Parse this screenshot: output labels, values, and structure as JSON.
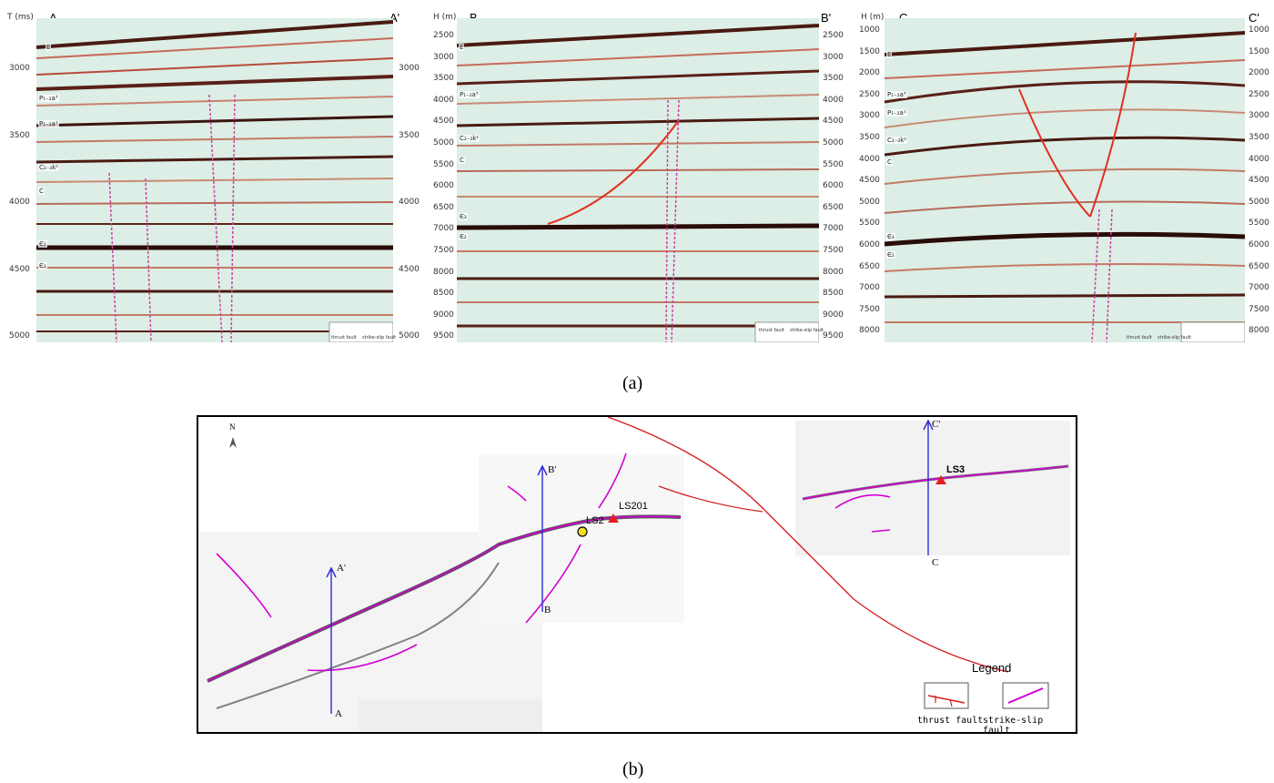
{
  "figure": {
    "label_a": "(a)",
    "label_b": "(b)"
  },
  "panels": [
    {
      "axis_title": "T (ms)",
      "left_end": "A",
      "right_end": "A'",
      "ticks": [
        "3000",
        "3500",
        "4000",
        "4500",
        "5000"
      ],
      "horizons": [
        "E",
        "P₁₋₂a³",
        "P₁₋₂a¹",
        "C₂₋₃k²",
        "C",
        "Є₃",
        "Є₂"
      ],
      "legend": [
        "thrust fault",
        "strike-slip fault"
      ]
    },
    {
      "axis_title": "H (m)",
      "left_end": "B",
      "right_end": "B'",
      "ticks": [
        "2500",
        "3000",
        "3500",
        "4000",
        "4500",
        "5000",
        "5500",
        "6000",
        "6500",
        "7000",
        "7500",
        "8000",
        "8500",
        "9000",
        "9500"
      ],
      "horizons": [
        "E",
        "P₁₋₂a³",
        "C₂₋₃k²",
        "C",
        "Є₃",
        "Є₂"
      ],
      "legend": [
        "thrust fault",
        "strike-slip fault"
      ]
    },
    {
      "axis_title": "H (m)",
      "left_end": "C",
      "right_end": "C'",
      "ticks": [
        "1000",
        "1500",
        "2000",
        "2500",
        "3000",
        "3500",
        "4000",
        "4500",
        "5000",
        "5500",
        "6000",
        "6500",
        "7000",
        "7500",
        "8000"
      ],
      "horizons": [
        "E",
        "P₁₋₂a³",
        "P₁₋₂a¹",
        "C₂₋₃k²",
        "C",
        "Є₃",
        "Є₂"
      ],
      "legend": [
        "thrust fault",
        "strike-slip fault"
      ]
    }
  ],
  "map": {
    "north": "N",
    "profile_labels": {
      "a": "A",
      "a_prime": "A'",
      "b": "B",
      "b_prime": "B'",
      "c": "C",
      "c_prime": "C'"
    },
    "wells": {
      "ls2": "LS2",
      "ls201": "LS201",
      "ls3": "LS3"
    },
    "legend_title": "Legend",
    "legend_thrust": "thrust fault",
    "legend_strike": "strike-slip fault",
    "colors": {
      "thrust": "#d62020",
      "strike_slip": "#d400d4",
      "profile": "#2a2ad8",
      "well": "#e02020",
      "ls2_well": "#f0e020"
    }
  }
}
